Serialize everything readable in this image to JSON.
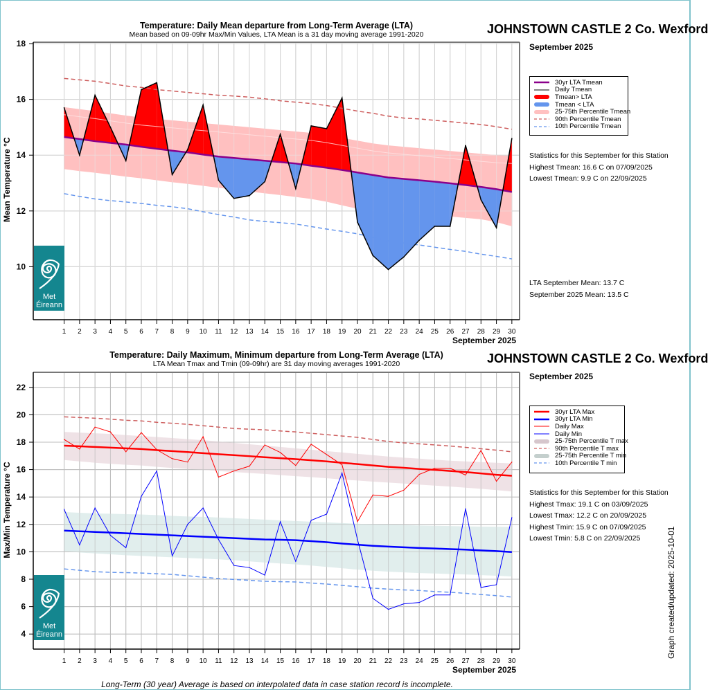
{
  "page": {
    "footer_note": "Long-Term (30 year) Average is based on interpolated data in case station record is incomplete.",
    "created_label": "Graph created/updated:  2025-10-01",
    "logo_text_line1": "Met",
    "logo_text_line2": "Éireann",
    "colors": {
      "frame": "#7fc3cc",
      "above_fill": "#ff0000",
      "below_fill": "#6495ed",
      "lta_mean_line": "#8b008b",
      "pct_band_mean": "#ffc0c0",
      "p90": "#cd5c5c",
      "p10": "#6495ed",
      "lta_max": "#ff0000",
      "lta_min": "#0000ff",
      "pct_band_max": "#ecdde2",
      "pct_band_min": "#deeceb",
      "logo": "#14868f"
    }
  },
  "chart_data": [
    {
      "type": "area",
      "id": "mean",
      "title": "Temperature: Daily Mean departure from Long-Term Average (LTA)",
      "subtitle": "Mean based on 09-09hr Max/Min Values, LTA Mean is a 31 day moving average 1991-2020",
      "station": "JOHNSTOWN CASTLE 2 Co. Wexford",
      "month_label": "September 2025",
      "xlabel": "September 2025",
      "ylabel": "Mean Temperature °C",
      "xlim": [
        -1,
        30.5
      ],
      "ylim": [
        8.1,
        18.05
      ],
      "yticks": [
        10,
        12,
        14,
        16,
        18
      ],
      "x": [
        1,
        2,
        3,
        4,
        5,
        6,
        7,
        8,
        9,
        10,
        11,
        12,
        13,
        14,
        15,
        16,
        17,
        18,
        19,
        20,
        21,
        22,
        23,
        24,
        25,
        26,
        27,
        28,
        29,
        30
      ],
      "grid": true,
      "legend_position": "right",
      "legend": [
        "30yr LTA Tmean",
        "Daily Tmean",
        "Tmean> LTA",
        "Tmean < LTA",
        "25-75th Percentile Tmean",
        "90th Percentile Tmean",
        "10th Percentile Tmean"
      ],
      "series": [
        {
          "name": "Daily Tmean",
          "values": [
            15.7,
            14.0,
            16.15,
            15.0,
            13.8,
            16.35,
            16.6,
            13.3,
            14.2,
            15.8,
            13.1,
            12.45,
            12.55,
            13.05,
            14.75,
            12.8,
            15.05,
            14.95,
            16.05,
            11.6,
            10.4,
            9.9,
            10.35,
            10.95,
            11.45,
            11.45,
            14.35,
            12.4,
            11.4,
            14.6
          ]
        },
        {
          "name": "30yr LTA Tmean",
          "values": [
            14.65,
            14.58,
            14.5,
            14.44,
            14.38,
            14.3,
            14.23,
            14.16,
            14.1,
            14.02,
            13.95,
            13.9,
            13.85,
            13.8,
            13.75,
            13.7,
            13.62,
            13.55,
            13.47,
            13.38,
            13.29,
            13.2,
            13.15,
            13.1,
            13.05,
            12.99,
            12.93,
            12.86,
            12.78,
            12.68
          ]
        },
        {
          "name": "25th Percentile Tmean",
          "values": [
            13.5,
            13.43,
            13.37,
            13.3,
            13.23,
            13.17,
            13.1,
            13.03,
            12.97,
            12.9,
            12.83,
            12.77,
            12.7,
            12.63,
            12.57,
            12.5,
            12.43,
            12.33,
            12.2,
            12.08,
            12.0,
            11.92,
            11.9,
            11.87,
            11.85,
            11.8,
            11.75,
            11.7,
            11.6,
            11.45
          ]
        },
        {
          "name": "75th Percentile Tmean",
          "values": [
            15.72,
            15.65,
            15.58,
            15.5,
            15.42,
            15.35,
            15.3,
            15.25,
            15.2,
            15.15,
            15.1,
            15.05,
            15.0,
            14.95,
            14.9,
            14.85,
            14.8,
            14.72,
            14.62,
            14.52,
            14.42,
            14.35,
            14.3,
            14.25,
            14.2,
            14.15,
            14.1,
            14.05,
            14.0,
            13.97
          ]
        },
        {
          "name": "90th Percentile Tmean",
          "values": [
            16.75,
            16.7,
            16.65,
            16.57,
            16.48,
            16.43,
            16.35,
            16.3,
            16.25,
            16.2,
            16.15,
            16.12,
            16.08,
            16.02,
            15.95,
            15.9,
            15.85,
            15.78,
            15.68,
            15.58,
            15.5,
            15.4,
            15.33,
            15.3,
            15.25,
            15.2,
            15.15,
            15.1,
            15.02,
            14.93
          ]
        },
        {
          "name": "10th Percentile Tmean",
          "values": [
            12.62,
            12.52,
            12.43,
            12.37,
            12.32,
            12.27,
            12.2,
            12.15,
            12.08,
            11.97,
            11.87,
            11.78,
            11.68,
            11.62,
            11.58,
            11.53,
            11.44,
            11.35,
            11.27,
            11.18,
            11.05,
            10.93,
            10.85,
            10.78,
            10.7,
            10.62,
            10.55,
            10.45,
            10.37,
            10.28
          ]
        }
      ],
      "stats_heading": "Statistics for this September for this Station",
      "stats": [
        "Highest Tmean: 16.6 C on 07/09/2025",
        "Lowest Tmean: 9.9 C on 22/09/2025"
      ],
      "summary": [
        "LTA September Mean: 13.7 C",
        "September 2025 Mean: 13.5 C"
      ]
    },
    {
      "type": "line",
      "id": "maxmin",
      "title": "Temperature: Daily Maximum, Minimum departure from Long-Term Average (LTA)",
      "subtitle": "LTA Mean Tmax and Tmin (09-09hr) are 31 day moving averages 1991-2020",
      "station": "JOHNSTOWN CASTLE 2 Co. Wexford",
      "month_label": "September 2025",
      "xlabel": "September 2025",
      "ylabel": "Max/Min Temperature °C",
      "xlim": [
        -1,
        30.5
      ],
      "ylim": [
        2.9,
        23.1
      ],
      "yticks": [
        4,
        6,
        8,
        10,
        12,
        14,
        16,
        18,
        20,
        22
      ],
      "x": [
        1,
        2,
        3,
        4,
        5,
        6,
        7,
        8,
        9,
        10,
        11,
        12,
        13,
        14,
        15,
        16,
        17,
        18,
        19,
        20,
        21,
        22,
        23,
        24,
        25,
        26,
        27,
        28,
        29,
        30
      ],
      "grid": true,
      "legend_position": "right",
      "legend": [
        "30yr LTA Max",
        "30yr LTA Min",
        "Daily Max",
        "Daily Min",
        "25-75th Percentile T max",
        "90th Percentile T max",
        "25-75th Percentile T min",
        "10th Percentile T min"
      ],
      "series": [
        {
          "name": "Daily Max",
          "values": [
            18.2,
            17.5,
            19.1,
            18.75,
            17.3,
            18.7,
            17.45,
            16.8,
            16.55,
            18.4,
            15.45,
            15.9,
            16.25,
            17.8,
            17.25,
            16.3,
            17.85,
            17.1,
            16.35,
            12.2,
            14.15,
            14.05,
            14.5,
            15.65,
            16.1,
            16.1,
            15.6,
            17.4,
            15.15,
            16.55
          ]
        },
        {
          "name": "Daily Min",
          "values": [
            13.1,
            10.5,
            13.2,
            11.2,
            10.3,
            14.05,
            15.9,
            9.7,
            12.0,
            13.2,
            10.9,
            9.0,
            8.85,
            8.3,
            12.2,
            9.3,
            12.3,
            12.75,
            15.75,
            10.9,
            6.6,
            5.8,
            6.2,
            6.3,
            6.85,
            6.85,
            13.15,
            7.4,
            7.6,
            12.5
          ]
        },
        {
          "name": "30yr LTA Max",
          "values": [
            17.75,
            17.7,
            17.65,
            17.6,
            17.55,
            17.5,
            17.42,
            17.35,
            17.28,
            17.2,
            17.12,
            17.05,
            16.98,
            16.9,
            16.83,
            16.76,
            16.68,
            16.6,
            16.5,
            16.4,
            16.3,
            16.2,
            16.13,
            16.05,
            15.98,
            15.9,
            15.82,
            15.72,
            15.62,
            15.55
          ]
        },
        {
          "name": "30yr LTA Min",
          "values": [
            11.55,
            11.5,
            11.45,
            11.4,
            11.35,
            11.3,
            11.25,
            11.2,
            11.15,
            11.1,
            11.05,
            11.0,
            10.95,
            10.9,
            10.88,
            10.85,
            10.78,
            10.7,
            10.6,
            10.52,
            10.44,
            10.38,
            10.33,
            10.28,
            10.24,
            10.2,
            10.16,
            10.1,
            10.05,
            9.98
          ]
        },
        {
          "name": "25th Percentile T max",
          "values": [
            16.7,
            16.6,
            16.5,
            16.42,
            16.35,
            16.3,
            16.2,
            16.12,
            16.05,
            15.98,
            15.9,
            15.82,
            15.75,
            15.68,
            15.6,
            15.52,
            15.45,
            15.37,
            15.28,
            15.2,
            15.12,
            15.05,
            14.98,
            14.9,
            14.83,
            14.76,
            14.68,
            14.6,
            14.5,
            14.4
          ]
        },
        {
          "name": "75th Percentile T max",
          "values": [
            18.75,
            18.7,
            18.65,
            18.6,
            18.52,
            18.45,
            18.38,
            18.3,
            18.22,
            18.15,
            18.05,
            17.95,
            17.85,
            17.75,
            17.65,
            17.55,
            17.45,
            17.35,
            17.25,
            17.15,
            17.05,
            16.95,
            16.87,
            16.8,
            16.72,
            16.65,
            16.6,
            16.55,
            16.5,
            16.45
          ]
        },
        {
          "name": "90th Percentile T max",
          "values": [
            19.85,
            19.8,
            19.75,
            19.68,
            19.6,
            19.55,
            19.45,
            19.38,
            19.3,
            19.2,
            19.1,
            19.0,
            18.95,
            18.9,
            18.82,
            18.75,
            18.65,
            18.55,
            18.45,
            18.35,
            18.2,
            18.05,
            17.95,
            17.88,
            17.8,
            17.72,
            17.62,
            17.52,
            17.42,
            17.3
          ]
        },
        {
          "name": "25th Percentile T min",
          "values": [
            10.05,
            9.95,
            9.88,
            9.82,
            9.75,
            9.7,
            9.65,
            9.6,
            9.55,
            9.5,
            9.45,
            9.38,
            9.3,
            9.22,
            9.15,
            9.08,
            9.0,
            8.9,
            8.8,
            8.7,
            8.62,
            8.55,
            8.5,
            8.45,
            8.42,
            8.38,
            8.35,
            8.3,
            8.25,
            8.2
          ]
        },
        {
          "name": "75th Percentile T min",
          "values": [
            12.9,
            12.85,
            12.8,
            12.78,
            12.75,
            12.72,
            12.68,
            12.62,
            12.58,
            12.55,
            12.5,
            12.45,
            12.4,
            12.35,
            12.3,
            12.25,
            12.2,
            12.15,
            12.1,
            12.05,
            12.0,
            11.98,
            11.95,
            11.92,
            11.9,
            11.88,
            11.86,
            11.84,
            11.83,
            11.82
          ]
        },
        {
          "name": "10th Percentile T min",
          "values": [
            8.75,
            8.65,
            8.55,
            8.5,
            8.48,
            8.45,
            8.4,
            8.35,
            8.25,
            8.15,
            8.05,
            7.98,
            7.92,
            7.85,
            7.82,
            7.8,
            7.72,
            7.65,
            7.55,
            7.45,
            7.35,
            7.28,
            7.22,
            7.18,
            7.1,
            7.05,
            6.97,
            6.88,
            6.8,
            6.7
          ]
        }
      ],
      "stats_heading": "Statistics for this September for this Station",
      "stats": [
        "Highest Tmax: 19.1 C on 03/09/2025",
        "Lowest Tmax: 12.2 C on 20/09/2025",
        "Highest Tmin: 15.9 C on 07/09/2025",
        "Lowest Tmin: 5.8 C on 22/09/2025"
      ]
    }
  ]
}
